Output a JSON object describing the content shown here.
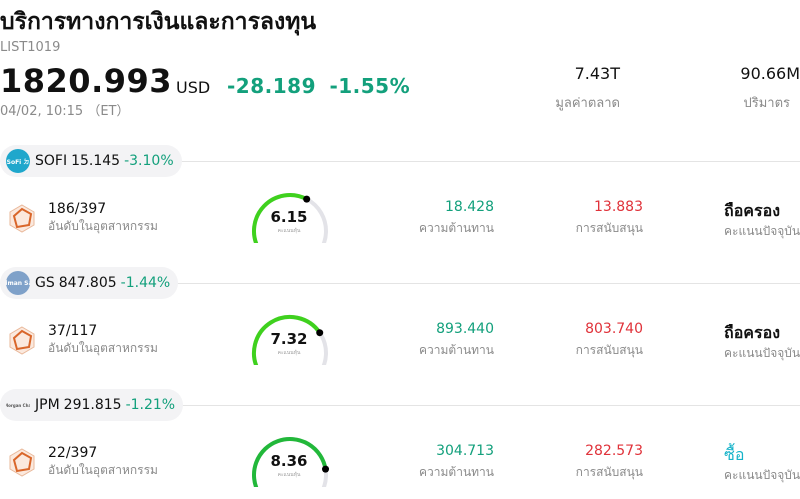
{
  "header": {
    "title": "บริการทางการเงินและการลงทุน",
    "list_code": "LIST1019",
    "price": "1820.993",
    "currency": "USD",
    "change": "-28.189",
    "change_pct": "-1.55%",
    "timestamp": "04/02, 10:15 （ET）",
    "market_cap_value": "7.43T",
    "market_cap_label": "มูลค่าตลาด",
    "volume_value": "90.66M",
    "volume_label": "ปริมาตร"
  },
  "stocks": [
    {
      "symbol": "SOFI",
      "price": "15.145",
      "change_pct": "-3.10%",
      "logo_text": "SoFi ㄉ",
      "logo_icon": "sofi-logo-icon",
      "logo_color": "#1fa7cc",
      "rank": "186/397",
      "rank_label": "อันดับในอุตสาหกรรม",
      "score": "6.15",
      "score_label": "คะแนนหุ้น",
      "score_fraction": 0.615,
      "resistance": "18.428",
      "resistance_label": "ความต้านทาน",
      "support": "13.883",
      "support_label": "การสนับสนุน",
      "action": "ถือครอง",
      "action_label": "คะแนนปัจจุบัน"
    },
    {
      "symbol": "GS",
      "price": "847.805",
      "change_pct": "-1.44%",
      "logo_text": "Goldman Sachs",
      "logo_icon": "goldman-sachs-logo-icon",
      "logo_color": "#7fa1c9",
      "rank": "37/117",
      "rank_label": "อันดับในอุตสาหกรรม",
      "score": "7.32",
      "score_label": "คะแนนหุ้น",
      "score_fraction": 0.732,
      "resistance": "893.440",
      "resistance_label": "ความต้านทาน",
      "support": "803.740",
      "support_label": "การสนับสนุน",
      "action": "ถือครอง",
      "action_label": "คะแนนปัจจุบัน"
    },
    {
      "symbol": "JPM",
      "price": "291.815",
      "change_pct": "-1.21%",
      "logo_text": "JPMorgan Chase",
      "logo_icon": "jpmorgan-logo-icon",
      "logo_color": "#f3f3f5",
      "rank": "22/397",
      "rank_label": "อันดับในอุตสาหกรรม",
      "score": "8.36",
      "score_label": "คะแนนหุ้น",
      "score_fraction": 0.836,
      "resistance": "304.713",
      "resistance_label": "ความต้านทาน",
      "support": "282.573",
      "support_label": "การสนับสนุน",
      "action": "ซื้อ",
      "action_label": "คะแนนปัจจุบัน"
    }
  ],
  "colors": {
    "positive_green": "#13a07c",
    "support_red": "#e0323a",
    "buy_teal": "#16b3c9",
    "rank_icon_orange": "#d9662a"
  }
}
